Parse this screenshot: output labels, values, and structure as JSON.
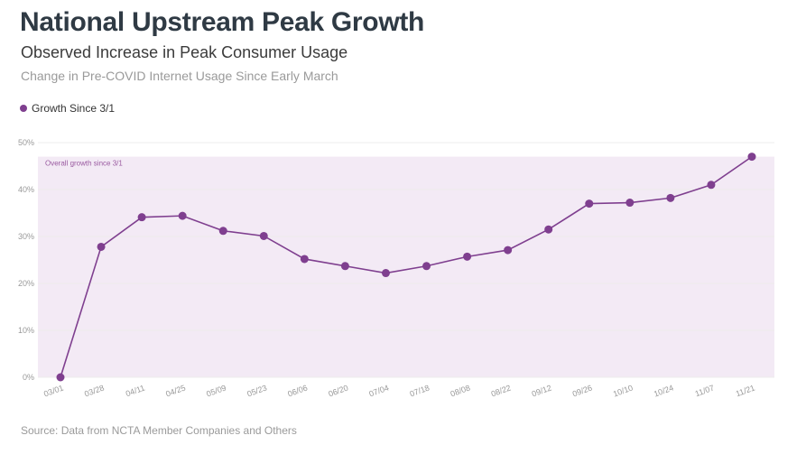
{
  "header": {
    "title": "National Upstream Peak Growth",
    "subtitle": "Observed Increase in Peak Consumer Usage",
    "description": "Change in Pre-COVID Internet Usage Since Early March"
  },
  "legend": {
    "label": "Growth Since 3/1",
    "color": "#7f3f8f"
  },
  "footer": {
    "source": "Source: Data from NCTA Member Companies and Others"
  },
  "colors": {
    "series": "#7f3f8f",
    "band": "#f3eaf5",
    "grid": "#ececec"
  },
  "chart_data": {
    "type": "line",
    "title": "National Upstream Peak Growth",
    "subtitle": "Observed Increase in Peak Consumer Usage",
    "xlabel": "",
    "ylabel": "",
    "x": [
      "03/01",
      "03/28",
      "04/11",
      "04/25",
      "05/09",
      "05/23",
      "06/06",
      "06/20",
      "07/04",
      "07/18",
      "08/08",
      "08/22",
      "09/12",
      "09/26",
      "10/10",
      "10/24",
      "11/07",
      "11/21"
    ],
    "series": [
      {
        "name": "Growth Since 3/1",
        "values": [
          0,
          27.8,
          34.1,
          34.4,
          31.2,
          30.1,
          25.2,
          23.7,
          22.2,
          23.7,
          25.7,
          27.1,
          31.5,
          37.0,
          37.2,
          38.2,
          41.0,
          47.0
        ]
      }
    ],
    "ylim": [
      0,
      50
    ],
    "yticks": [
      "0%",
      "10%",
      "20%",
      "30%",
      "40%",
      "50%"
    ],
    "ytick_values": [
      0,
      10,
      20,
      30,
      40,
      50
    ],
    "band": {
      "from": 0,
      "to": 47,
      "label": "Overall growth since 3/1"
    },
    "grid": true,
    "legend_position": "top-left"
  }
}
